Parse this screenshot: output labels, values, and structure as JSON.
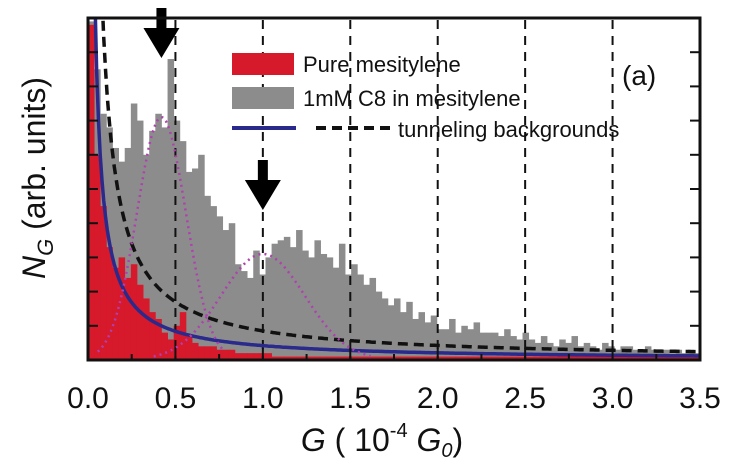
{
  "chart_data": {
    "type": "bar",
    "panel_label": "(a)",
    "xlabel": {
      "prefix": "G",
      "text_open": " ( 10",
      "exponent": "-4",
      "unit": " G",
      "unit_sub": "0",
      "close": ")"
    },
    "ylabel": {
      "main": "N",
      "sub": "G",
      "rest": " (arb. units)"
    },
    "xlim": [
      0.0,
      3.5
    ],
    "ylim": [
      0,
      100
    ],
    "x_tick_labels": [
      "0.0",
      "0.5",
      "1.0",
      "1.5",
      "2.0",
      "2.5",
      "3.0",
      "3.5"
    ],
    "x_ticks": [
      0.0,
      0.5,
      1.0,
      1.5,
      2.0,
      2.5,
      3.0,
      3.5
    ],
    "y_ticks_unlabeled": [
      10,
      20,
      30,
      40,
      50,
      60,
      70,
      80,
      90
    ],
    "grid": "dashed vertical lines at 0.5, 1.0, 1.5, 2.0, 2.5, 3.0",
    "grid_x": [
      0.5,
      1.0,
      1.5,
      2.0,
      2.5,
      3.0
    ],
    "legend_position": "top-right",
    "series": [
      {
        "name": "Pure mesitylene",
        "kind": "histogram",
        "color": "#d6192b",
        "bin_width": 0.035,
        "values": [
          98,
          60,
          45,
          33,
          27,
          30,
          24,
          28,
          22,
          18,
          14,
          12,
          8,
          6,
          10,
          14,
          7,
          5,
          4,
          4,
          4,
          3,
          3,
          3,
          2,
          2,
          2,
          2,
          2,
          2,
          1,
          1,
          1,
          1,
          1,
          1,
          1,
          1,
          1,
          1,
          1,
          1,
          1,
          1,
          1,
          1,
          1,
          1,
          1,
          1,
          1,
          1,
          1,
          1,
          1,
          1,
          1,
          1,
          1,
          1,
          1,
          1,
          1,
          1,
          1,
          1,
          1,
          1,
          1,
          1,
          1,
          1,
          1,
          1,
          1,
          1,
          1,
          1,
          1,
          1,
          1,
          1,
          1,
          1,
          1,
          1,
          1,
          1,
          1,
          1,
          1,
          1,
          1,
          1,
          1,
          1,
          1,
          1,
          1,
          1
        ]
      },
      {
        "name": "1mM C8 in mesitylene",
        "kind": "histogram",
        "color": "#8c8c8c",
        "bin_width": 0.035,
        "values": [
          99,
          85,
          72,
          68,
          62,
          58,
          62,
          75,
          70,
          60,
          67,
          72,
          68,
          88,
          70,
          64,
          55,
          56,
          60,
          48,
          45,
          42,
          38,
          40,
          28,
          26,
          24,
          32,
          25,
          30,
          34,
          35,
          36,
          33,
          38,
          32,
          30,
          35,
          31,
          30,
          27,
          34,
          25,
          28,
          25,
          22,
          24,
          20,
          18,
          16,
          18,
          14,
          17,
          12,
          14,
          11,
          13,
          9,
          9,
          12,
          8,
          10,
          9,
          11,
          8,
          8,
          8,
          7,
          9,
          7,
          6,
          8,
          6,
          5,
          7,
          5,
          4,
          6,
          5,
          7,
          4,
          5,
          4,
          3,
          5,
          4,
          3,
          4,
          4,
          3,
          3,
          4,
          3,
          3,
          3,
          2,
          3,
          2,
          3,
          2
        ]
      }
    ],
    "curves": [
      {
        "name": "tunneling backgrounds",
        "style": "solid",
        "color": "#2a2a8c",
        "model": "power",
        "a": 4.2,
        "b": 1.0
      },
      {
        "name": "tunneling backgrounds",
        "style": "dashed",
        "color": "#111111",
        "model": "power",
        "a": 8.5,
        "b": 1.0
      }
    ],
    "fit_curves": [
      {
        "style": "dotted",
        "color": "#b040b0",
        "model": "gauss",
        "mu": 0.42,
        "sigma": 0.14,
        "peak": 71
      },
      {
        "style": "dotted",
        "color": "#b040b0",
        "model": "gauss",
        "mu": 1.0,
        "sigma": 0.24,
        "peak": 31
      }
    ],
    "arrows_at_x": [
      0.42,
      1.0
    ],
    "legend": [
      {
        "label": "Pure mesitylene",
        "swatch": "red-block"
      },
      {
        "label": "1mM C8 in mesitylene",
        "swatch": "gray-block"
      },
      {
        "label": "tunneling backgrounds",
        "swatch": "solid-dashed-lines"
      }
    ]
  }
}
